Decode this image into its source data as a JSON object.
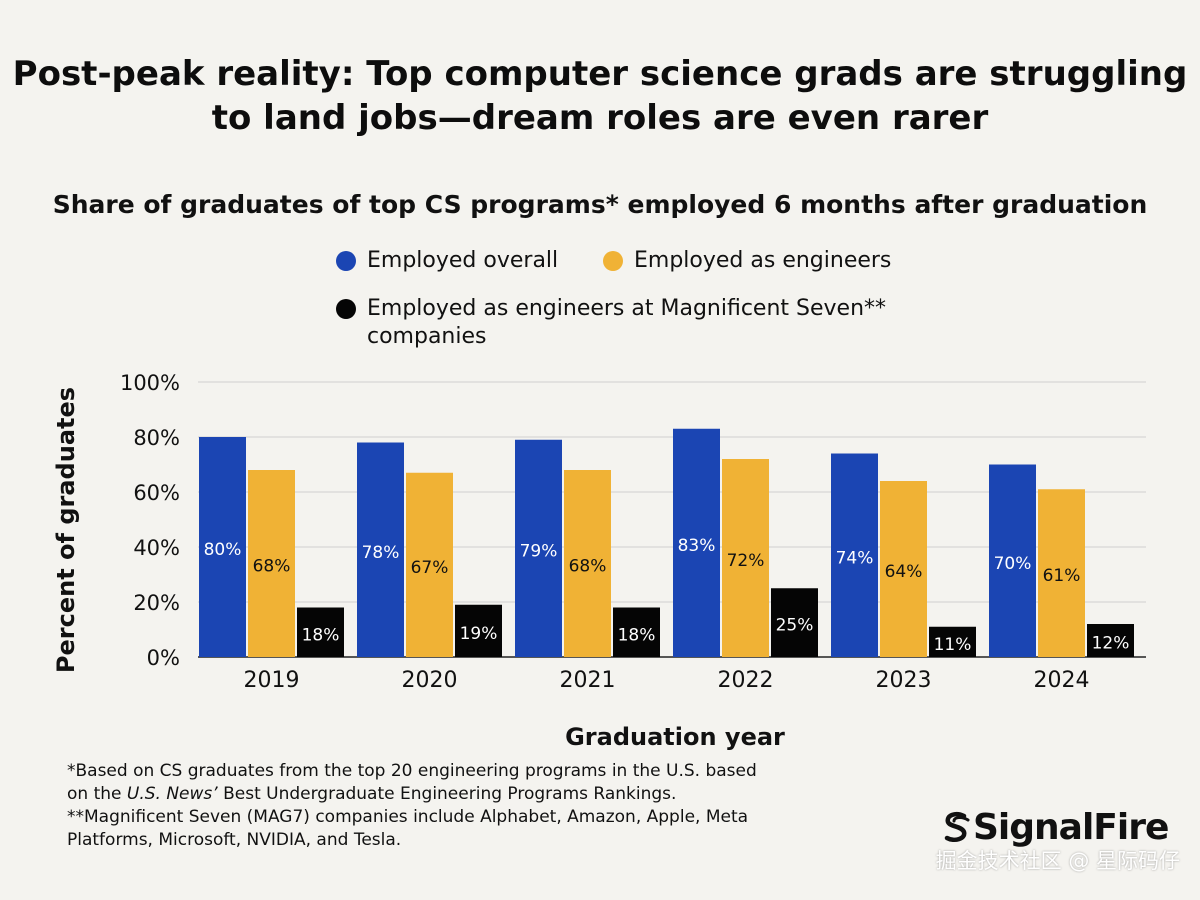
{
  "title": "Post-peak reality: Top computer science grads are struggling to land jobs—dream roles are even rarer",
  "subtitle": "Share of graduates of top CS programs* employed 6 months after graduation",
  "footnote": {
    "line1": "*Based on CS graduates from the top 20 engineering programs in the U.S. based",
    "line2_prefix": "on the ",
    "line2_italic": "U.S. News’",
    "line2_suffix": " Best Undergraduate Engineering Programs Rankings.",
    "line3": "**Magnificent Seven (MAG7) companies include Alphabet, Amazon, Apple, Meta\nPlatforms, Microsoft, NVIDIA, and Tesla."
  },
  "logo": {
    "text": "SignalFire",
    "icon": "signalfire-logo-icon"
  },
  "watermark": "掘金技术社区 @ 星际码仔",
  "chart_data": {
    "type": "bar",
    "categories": [
      "2019",
      "2020",
      "2021",
      "2022",
      "2023",
      "2024"
    ],
    "xlabel": "Graduation year",
    "ylabel": "Percent of graduates",
    "ylim": [
      0,
      100
    ],
    "yticks": [
      "0%",
      "20%",
      "40%",
      "60%",
      "80%",
      "100%"
    ],
    "grid": true,
    "series": [
      {
        "name": "Employed overall",
        "color": "#1b45b3",
        "label_color": "#ffffff",
        "values": [
          80,
          78,
          79,
          83,
          74,
          70
        ],
        "labels": [
          "80%",
          "78%",
          "79%",
          "83%",
          "74%",
          "70%"
        ]
      },
      {
        "name": "Employed as engineers",
        "color": "#f0b235",
        "label_color": "#111111",
        "values": [
          68,
          67,
          68,
          72,
          64,
          61
        ],
        "labels": [
          "68%",
          "67%",
          "68%",
          "72%",
          "64%",
          "61%"
        ]
      },
      {
        "name": "Employed as engineers at Magnificent Seven** companies",
        "color": "#050505",
        "label_color": "#ffffff",
        "values": [
          18,
          19,
          18,
          25,
          11,
          12
        ],
        "labels": [
          "18%",
          "19%",
          "18%",
          "25%",
          "11%",
          "12%"
        ]
      }
    ]
  }
}
